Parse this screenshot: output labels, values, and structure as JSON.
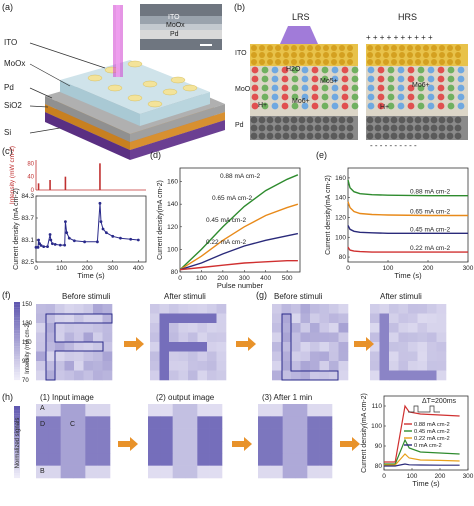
{
  "panels": {
    "a": {
      "letter": "(a)",
      "layers": [
        "ITO",
        "MoOx",
        "Pd",
        "SiO2",
        "Si"
      ],
      "inset_layers": [
        "ITO",
        "MoOx",
        "Pd"
      ]
    },
    "b": {
      "letter": "(b)",
      "state_left": "LRS",
      "state_right": "HRS",
      "layer_labels": [
        "ITO",
        "MoO",
        "Pd"
      ],
      "ion_labels": {
        "h2o": "H2O",
        "mo5": "Mo5+",
        "mo6": "Mo6+",
        "mo6_right": "Mo6+",
        "h_plus": "H+",
        "h_plus_right": "H+"
      },
      "plus_signs": "+ + + + + + + + + +",
      "minus_signs": "- - - - - - - - - -"
    },
    "f": {
      "letter": "(f)",
      "before": "Before stimuli",
      "after": "After stimuli",
      "colorbar_label": "Intensity (mA cm-2)",
      "colorbar_ticks": [
        "150",
        "130",
        "110",
        "90",
        "70"
      ]
    },
    "g": {
      "letter": "(g)",
      "before": "Before stimuli",
      "after": "After stimuli"
    },
    "h": {
      "letter": "(h)",
      "titles": [
        "(1) Input image",
        "(2) output image",
        "(3) After 1 min"
      ],
      "region_labels": [
        "A",
        "D",
        "C",
        "B"
      ],
      "colorbar_label": "Normalized signals",
      "delta_t": "ΔT=200ms"
    }
  },
  "chart_data": [
    {
      "id": "c",
      "letter": "(c)",
      "type": "line",
      "top": {
        "ylabel": "Intensity (mW cm-2)",
        "yticks": [
          "80",
          "40",
          "0"
        ],
        "pulses": [
          {
            "x": 10,
            "y": 20
          },
          {
            "x": 55,
            "y": 30
          },
          {
            "x": 115,
            "y": 40
          },
          {
            "x": 250,
            "y": 80
          }
        ]
      },
      "bottom": {
        "ylabel": "Current density (mA cm-2)",
        "yticks": [
          "84.3",
          "83.7",
          "83.1",
          "82.5"
        ],
        "ylim": [
          82.5,
          84.3
        ],
        "x": [
          0,
          8,
          10,
          14,
          20,
          30,
          45,
          55,
          58,
          64,
          75,
          95,
          112,
          115,
          120,
          130,
          150,
          190,
          240,
          250,
          254,
          262,
          275,
          300,
          330,
          370,
          400
        ],
        "y": [
          82.9,
          82.9,
          83.1,
          83.0,
          82.95,
          82.92,
          82.92,
          83.25,
          83.1,
          83.0,
          82.98,
          82.96,
          82.96,
          83.6,
          83.3,
          83.15,
          83.08,
          83.05,
          83.05,
          84.1,
          83.6,
          83.4,
          83.3,
          83.2,
          83.15,
          83.12,
          83.1
        ]
      },
      "xlabel": "Time (s)",
      "xticks": [
        "0",
        "100",
        "200",
        "300",
        "400"
      ],
      "xlim": [
        0,
        430
      ]
    },
    {
      "id": "d",
      "letter": "(d)",
      "type": "line",
      "xlabel": "Pulse number",
      "ylabel": "Current density(mA cm-2)",
      "xticks": [
        "0",
        "100",
        "200",
        "300",
        "400",
        "500"
      ],
      "yticks": [
        "80",
        "100",
        "120",
        "140",
        "160"
      ],
      "xlim": [
        0,
        560
      ],
      "ylim": [
        80,
        172
      ],
      "series": [
        {
          "name": "0.88 mA cm-2",
          "color": "#2e8b2e",
          "x": [
            0,
            100,
            200,
            300,
            400,
            500,
            550
          ],
          "y": [
            82,
            100,
            120,
            138,
            152,
            162,
            166
          ]
        },
        {
          "name": "0.65 mA cm-2",
          "color": "#e88a1a",
          "x": [
            0,
            100,
            200,
            300,
            400,
            500,
            550
          ],
          "y": [
            82,
            94,
            108,
            120,
            130,
            137,
            140
          ]
        },
        {
          "name": "0.45 mA cm-2",
          "color": "#2a2a7a",
          "x": [
            0,
            100,
            200,
            300,
            400,
            500,
            550
          ],
          "y": [
            82,
            88,
            96,
            103,
            108,
            112,
            114
          ]
        },
        {
          "name": "0.22 mA cm-2",
          "color": "#d03030",
          "x": [
            0,
            100,
            200,
            300,
            400,
            500,
            550
          ],
          "y": [
            82,
            84,
            86,
            88,
            89,
            90,
            90
          ]
        }
      ]
    },
    {
      "id": "e",
      "letter": "(e)",
      "type": "line",
      "xlabel": "Time (s)",
      "ylabel": "Current density(mA cm-2)",
      "xticks": [
        "0",
        "100",
        "200",
        "300"
      ],
      "yticks": [
        "80",
        "100",
        "120",
        "140",
        "160"
      ],
      "xlim": [
        0,
        300
      ],
      "ylim": [
        75,
        170
      ],
      "series": [
        {
          "name": "0.88 mA cm-2",
          "color": "#2e8b2e",
          "x": [
            0,
            5,
            15,
            30,
            60,
            100,
            200,
            300
          ],
          "y": [
            158,
            150,
            146,
            144,
            143,
            142.5,
            142,
            142
          ]
        },
        {
          "name": "0.65 mA cm-2",
          "color": "#e88a1a",
          "x": [
            0,
            5,
            15,
            30,
            60,
            100,
            200,
            300
          ],
          "y": [
            136,
            130,
            126,
            124,
            123,
            122.5,
            122,
            122
          ]
        },
        {
          "name": "0.45 mA cm-2",
          "color": "#2a2a7a",
          "x": [
            0,
            5,
            15,
            30,
            60,
            100,
            200,
            300
          ],
          "y": [
            112,
            108,
            106,
            105,
            104.5,
            104,
            104,
            104
          ]
        },
        {
          "name": "0.22 mA cm-2",
          "color": "#d03030",
          "x": [
            0,
            5,
            15,
            30,
            60,
            100,
            200,
            300
          ],
          "y": [
            90,
            87,
            86,
            85.5,
            85,
            85,
            85,
            85
          ]
        }
      ]
    },
    {
      "id": "h-right",
      "type": "line",
      "xlabel": "Time (s)",
      "ylabel": "Current density(mA cm-2)",
      "xticks": [
        "0",
        "100",
        "200",
        "300"
      ],
      "yticks": [
        "80",
        "90",
        "100",
        "110"
      ],
      "xlim": [
        0,
        300
      ],
      "ylim": [
        78,
        115
      ],
      "series": [
        {
          "name": "0.88 mA cm-2",
          "color": "#d03030",
          "x": [
            0,
            40,
            75,
            90,
            130,
            200,
            270
          ],
          "y": [
            82,
            82,
            110,
            107,
            106,
            105.5,
            105
          ]
        },
        {
          "name": "0.45 mA cm-2",
          "color": "#2e8b2e",
          "x": [
            0,
            40,
            75,
            90,
            130,
            200,
            270
          ],
          "y": [
            81,
            81,
            93,
            89,
            87,
            86.5,
            86
          ]
        },
        {
          "name": "0.22 mA cm-2",
          "color": "#e8a01a",
          "x": [
            0,
            40,
            75,
            90,
            130,
            200,
            270
          ],
          "y": [
            80.5,
            80.5,
            86,
            84,
            83,
            82.8,
            82.5
          ]
        },
        {
          "name": "0 mA cm-2",
          "color": "#2a2a7a",
          "x": [
            0,
            40,
            75,
            90,
            130,
            200,
            270
          ],
          "y": [
            80,
            80,
            81,
            80.6,
            80.5,
            80.4,
            80.4
          ]
        }
      ]
    }
  ]
}
